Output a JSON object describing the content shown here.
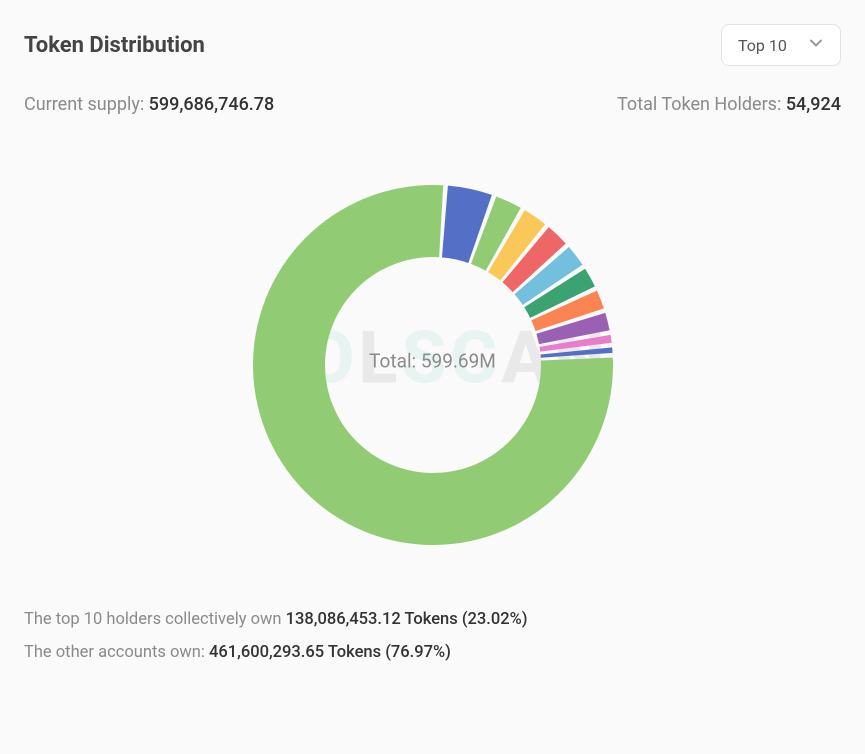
{
  "header": {
    "title": "Token Distribution",
    "dropdown": {
      "selected": "Top 10"
    }
  },
  "stats": {
    "supply_label": "Current supply:",
    "supply_value": "599,686,746.78",
    "holders_label": "Total Token Holders:",
    "holders_value": "54,924"
  },
  "watermark": {
    "p1": "SO",
    "p2": "L",
    "p3": "SC",
    "p4": "AN"
  },
  "donut_chart": {
    "type": "donut",
    "center_text": "Total: 599.69M",
    "center_color": "#8a8a8a",
    "center_fontsize": 19,
    "background_color": "#fafafa",
    "outer_radius": 180,
    "inner_radius": 108,
    "gap_deg": 1.5,
    "start_angle_deg": -86,
    "slices": [
      {
        "value": 4.4,
        "color": "#5470c6"
      },
      {
        "value": 2.8,
        "color": "#91cc75"
      },
      {
        "value": 2.6,
        "color": "#fac858"
      },
      {
        "value": 2.5,
        "color": "#ee6666"
      },
      {
        "value": 2.4,
        "color": "#73c0de"
      },
      {
        "value": 2.2,
        "color": "#3ba272"
      },
      {
        "value": 2.1,
        "color": "#fc8452"
      },
      {
        "value": 2.0,
        "color": "#9a60b4"
      },
      {
        "value": 1.12,
        "color": "#ea7ccc"
      },
      {
        "value": 0.9,
        "color": "#5470c6"
      },
      {
        "value": 76.97,
        "color": "#91cc75"
      }
    ]
  },
  "footer": {
    "line1_label": "The top 10 holders collectively own ",
    "line1_value": "138,086,453.12 Tokens (23.02%)",
    "line2_label": "The other accounts own: ",
    "line2_value": "461,600,293.65 Tokens (76.97%)"
  }
}
